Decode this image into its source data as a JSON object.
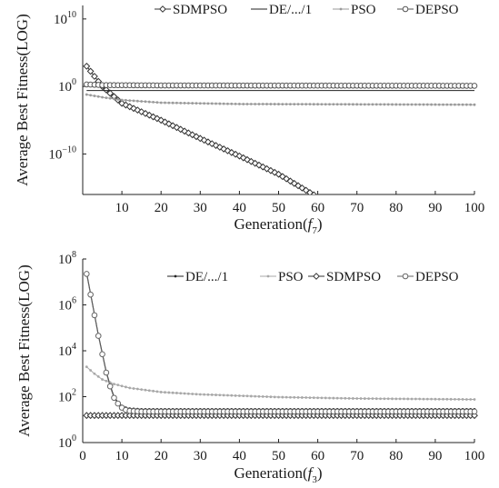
{
  "chart_data": [
    {
      "type": "line",
      "xlabel": "Generation(",
      "xlabel_func": "f",
      "xlabel_sub": "7",
      "xlabel_end": ")",
      "ylabel": "Average Best Fitness(LOG)",
      "yscale": "log",
      "xlim": [
        0,
        100
      ],
      "ylim_exp": [
        -16,
        12
      ],
      "xticks": [
        10,
        20,
        30,
        40,
        50,
        60,
        70,
        80,
        90,
        100
      ],
      "xtick_labels": [
        "10",
        "20",
        "30",
        "40",
        "50",
        "60",
        "70",
        "80",
        "90",
        "100"
      ],
      "yticks_exp": [
        10,
        0,
        -10
      ],
      "ytick_bases": [
        "10",
        "10",
        "10"
      ],
      "ytick_exps": [
        "10",
        "0",
        "−10"
      ],
      "grid": false,
      "legend_position": "top",
      "series": [
        {
          "name": "SDMPSO",
          "marker": "diamond-open",
          "color": "#333333",
          "points": [
            [
              1,
              3
            ],
            [
              5,
              0
            ],
            [
              10,
              -2.5
            ],
            [
              20,
              -5
            ],
            [
              30,
              -7.7
            ],
            [
              40,
              -10.3
            ],
            [
              50,
              -13
            ],
            [
              60,
              -16.4
            ],
            [
              64,
              -18.2
            ]
          ]
        },
        {
          "name": "DE/.../1",
          "marker": "none",
          "color": "#222222",
          "points": [
            [
              1,
              -0.6
            ],
            [
              100,
              -0.6
            ]
          ]
        },
        {
          "name": "PSO",
          "marker": "dot-small",
          "color": "#9a9a9a",
          "points": [
            [
              1,
              -1.2
            ],
            [
              5,
              -1.6
            ],
            [
              10,
              -2.0
            ],
            [
              20,
              -2.4
            ],
            [
              40,
              -2.6
            ],
            [
              100,
              -2.7
            ]
          ]
        },
        {
          "name": "DEPSO",
          "marker": "circle-open",
          "color": "#555555",
          "points": [
            [
              1,
              0.3
            ],
            [
              5,
              0.2
            ],
            [
              20,
              0.15
            ],
            [
              100,
              0.1
            ]
          ]
        }
      ]
    },
    {
      "type": "line",
      "xlabel": "Generation(",
      "xlabel_func": "f",
      "xlabel_sub": "3",
      "xlabel_end": ")",
      "ylabel": "Average Best Fitness(LOG)",
      "yscale": "log",
      "xlim": [
        0,
        100
      ],
      "ylim_exp": [
        0,
        8
      ],
      "xticks": [
        0,
        10,
        20,
        30,
        40,
        50,
        60,
        70,
        80,
        90,
        100
      ],
      "xtick_labels": [
        "0",
        "10",
        "20",
        "30",
        "40",
        "50",
        "60",
        "70",
        "80",
        "90",
        "100"
      ],
      "yticks_exp": [
        8,
        6,
        4,
        2,
        0
      ],
      "ytick_bases": [
        "10",
        "10",
        "10",
        "10",
        "10"
      ],
      "ytick_exps": [
        "8",
        "6",
        "4",
        "2",
        "0"
      ],
      "grid": false,
      "legend_position": "top-right",
      "series": [
        {
          "name": "DE/.../1",
          "marker": "dot-small",
          "color": "#222222",
          "points": [
            [
              1,
              7.4
            ],
            [
              2,
              6.5
            ],
            [
              3,
              5.6
            ],
            [
              4,
              4.7
            ],
            [
              5,
              3.9
            ],
            [
              6,
              3.1
            ],
            [
              7,
              2.5
            ],
            [
              8,
              2.0
            ],
            [
              9,
              1.75
            ],
            [
              10,
              1.6
            ],
            [
              11,
              1.52
            ],
            [
              12,
              1.48
            ],
            [
              15,
              1.45
            ],
            [
              100,
              1.45
            ]
          ]
        },
        {
          "name": "PSO",
          "marker": "dot-small",
          "color": "#a8a8a8",
          "points": [
            [
              1,
              3.3
            ],
            [
              3,
              3.0
            ],
            [
              5,
              2.75
            ],
            [
              8,
              2.55
            ],
            [
              12,
              2.38
            ],
            [
              20,
              2.2
            ],
            [
              30,
              2.1
            ],
            [
              50,
              1.98
            ],
            [
              70,
              1.92
            ],
            [
              100,
              1.88
            ]
          ]
        },
        {
          "name": "SDMPSO",
          "marker": "diamond-open",
          "color": "#333333",
          "points": [
            [
              1,
              1.18
            ],
            [
              100,
              1.18
            ]
          ]
        },
        {
          "name": "DEPSO",
          "marker": "circle-open",
          "color": "#666666",
          "points": [
            [
              1,
              7.35
            ],
            [
              2,
              6.45
            ],
            [
              3,
              5.55
            ],
            [
              4,
              4.65
            ],
            [
              5,
              3.85
            ],
            [
              6,
              3.05
            ],
            [
              7,
              2.45
            ],
            [
              8,
              1.95
            ],
            [
              9,
              1.7
            ],
            [
              10,
              1.52
            ],
            [
              11,
              1.42
            ],
            [
              12,
              1.38
            ],
            [
              15,
              1.35
            ],
            [
              100,
              1.35
            ]
          ]
        }
      ]
    }
  ]
}
